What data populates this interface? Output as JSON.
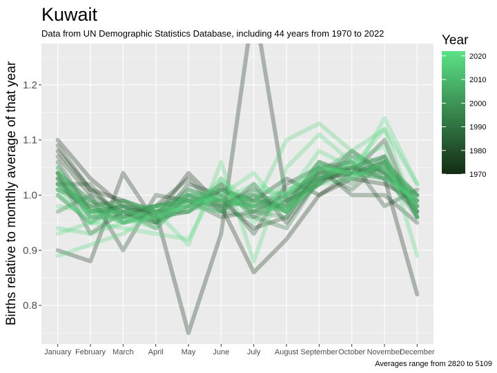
{
  "chart_data": {
    "type": "line",
    "title": "Kuwait",
    "subtitle": "Data from UN Demographic Statistics Database, including 44 years from 1970 to 2022",
    "ylabel": "Births relative to monthly average of that year",
    "xlabel": "",
    "caption": "Averages range from 2820 to 5109",
    "categories": [
      "January",
      "February",
      "March",
      "April",
      "May",
      "June",
      "July",
      "August",
      "September",
      "October",
      "November",
      "December"
    ],
    "ylim": [
      0.73,
      1.275
    ],
    "yticks": [
      0.8,
      0.9,
      1.0,
      1.1,
      1.2
    ],
    "ytick_labels": [
      "0.8",
      "0.9",
      "1.0",
      "1.1",
      "1.2"
    ],
    "grid": true,
    "legend": {
      "title": "Year",
      "position": "right",
      "range": [
        1970,
        2022
      ],
      "ticks": [
        1970,
        1980,
        1990,
        2000,
        2010,
        2020
      ],
      "low_color": "#132B13",
      "high_color": "#5BE286"
    },
    "colors": {
      "panel": "#EBEBEB",
      "grid": "#FFFFFF"
    },
    "series": [
      {
        "year": 1970,
        "values": [
          1.1,
          1.03,
          0.98,
          0.97,
          0.75,
          0.93,
          1.35,
          0.99,
          1.02,
          1.05,
          1.03,
          0.82
        ]
      },
      {
        "year": 1971,
        "values": [
          1.08,
          1.01,
          0.99,
          0.96,
          1.04,
          0.98,
          0.86,
          0.92,
          1.0,
          1.04,
          1.06,
          0.97
        ]
      },
      {
        "year": 1973,
        "values": [
          0.9,
          0.88,
          1.04,
          0.95,
          0.98,
          1.01,
          0.99,
          1.03,
          1.0,
          1.03,
          1.02,
          0.99
        ]
      },
      {
        "year": 1975,
        "values": [
          1.09,
          1.01,
          0.96,
          0.98,
          1.03,
          0.97,
          1.02,
          0.95,
          1.03,
          1.04,
          1.1,
          0.96
        ]
      },
      {
        "year": 1977,
        "values": [
          1.07,
          1.0,
          0.9,
          1.0,
          0.99,
          0.99,
          0.94,
          0.96,
          1.05,
          1.0,
          1.0,
          0.95
        ]
      },
      {
        "year": 1979,
        "values": [
          1.04,
          0.93,
          0.97,
          0.95,
          1.02,
          1.0,
          0.93,
          1.02,
          1.05,
          1.06,
          0.98,
          1.01
        ]
      },
      {
        "year": 1981,
        "values": [
          1.06,
          0.97,
          0.98,
          0.96,
          0.97,
          1.02,
          0.96,
          0.99,
          1.02,
          1.08,
          1.04,
          0.98
        ]
      },
      {
        "year": 1983,
        "values": [
          1.02,
          1.02,
          0.95,
          0.97,
          0.99,
          0.96,
          0.97,
          1.0,
          1.03,
          1.05,
          1.07,
          0.96
        ]
      },
      {
        "year": 1985,
        "values": [
          1.04,
          0.99,
          0.97,
          0.94,
          1.0,
          0.99,
          1.0,
          0.97,
          1.04,
          1.01,
          1.06,
          1.0
        ]
      },
      {
        "year": 1987,
        "values": [
          1.01,
          0.98,
          0.99,
          0.97,
          0.97,
          1.01,
          0.98,
          0.98,
          1.06,
          1.04,
          1.03,
          0.97
        ]
      },
      {
        "year": 1989,
        "values": [
          1.03,
          0.96,
          0.96,
          0.98,
          0.99,
          0.98,
          1.01,
          0.97,
          1.02,
          1.07,
          1.04,
          0.99
        ]
      },
      {
        "year": 1991,
        "values": [
          0.97,
          1.0,
          0.97,
          0.98,
          1.0,
          0.97,
          0.96,
          0.94,
          1.03,
          1.04,
          1.05,
          1.0
        ]
      },
      {
        "year": 1993,
        "values": [
          1.02,
          0.97,
          0.98,
          0.95,
          1.01,
          0.99,
          0.98,
          1.0,
          1.04,
          1.05,
          1.04,
          0.96
        ]
      },
      {
        "year": 1995,
        "values": [
          1.0,
          0.95,
          0.99,
          0.97,
          0.98,
          1.02,
          0.97,
          0.99,
          1.05,
          1.02,
          1.07,
          0.98
        ]
      },
      {
        "year": 1997,
        "values": [
          1.03,
          0.98,
          0.95,
          0.96,
          1.0,
          0.98,
          0.99,
          0.98,
          1.03,
          1.06,
          1.03,
          1.0
        ]
      },
      {
        "year": 1999,
        "values": [
          1.05,
          0.97,
          0.97,
          0.98,
          0.99,
          1.0,
          0.97,
          0.96,
          1.04,
          1.05,
          1.05,
          0.97
        ]
      },
      {
        "year": 2001,
        "values": [
          1.01,
          0.99,
          0.96,
          0.97,
          0.98,
          1.01,
          0.99,
          0.98,
          1.06,
          1.03,
          1.06,
          0.98
        ]
      },
      {
        "year": 2003,
        "values": [
          1.04,
          0.96,
          0.98,
          0.95,
          0.99,
          0.97,
          1.0,
          0.97,
          1.04,
          1.08,
          1.04,
          0.99
        ]
      },
      {
        "year": 2005,
        "values": [
          1.02,
          0.98,
          0.95,
          0.97,
          1.01,
          0.99,
          0.98,
          1.01,
          1.03,
          1.05,
          1.07,
          0.96
        ]
      },
      {
        "year": 2007,
        "values": [
          1.03,
          0.97,
          0.97,
          0.96,
          0.97,
          1.0,
          0.99,
          0.97,
          1.05,
          1.04,
          1.05,
          1.0
        ]
      },
      {
        "year": 2009,
        "values": [
          1.0,
          0.95,
          0.98,
          0.98,
          0.99,
          0.98,
          1.0,
          0.99,
          1.02,
          1.07,
          1.06,
          0.97
        ]
      },
      {
        "year": 2011,
        "values": [
          1.04,
          0.99,
          0.96,
          0.95,
          1.0,
          1.01,
          0.97,
          0.98,
          1.05,
          1.04,
          1.04,
          0.99
        ]
      },
      {
        "year": 2013,
        "values": [
          1.02,
          0.97,
          0.99,
          0.97,
          0.98,
          0.97,
          1.01,
          1.0,
          1.06,
          1.03,
          1.06,
          1.0
        ]
      },
      {
        "year": 2015,
        "values": [
          1.05,
          0.96,
          0.97,
          0.96,
          1.0,
          0.99,
          0.98,
          0.97,
          1.03,
          1.06,
          1.05,
          0.98
        ]
      },
      {
        "year": 2017,
        "values": [
          0.94,
          0.93,
          0.95,
          0.98,
          0.97,
          1.03,
          0.98,
          1.1,
          1.13,
          1.08,
          1.12,
          1.02
        ]
      },
      {
        "year": 2019,
        "values": [
          0.89,
          0.91,
          0.93,
          0.97,
          0.91,
          1.06,
          0.88,
          1.05,
          1.11,
          1.06,
          1.09,
          0.89
        ]
      },
      {
        "year": 2020,
        "values": [
          0.93,
          0.95,
          0.94,
          0.93,
          0.92,
          1.03,
          0.95,
          1.0,
          1.08,
          1.05,
          1.12,
          0.96
        ]
      },
      {
        "year": 2021,
        "values": [
          0.98,
          0.97,
          0.95,
          0.96,
          0.98,
          1.0,
          1.04,
          0.97,
          1.02,
          1.03,
          1.14,
          1.02
        ]
      },
      {
        "year": 2022,
        "values": [
          1.01,
          0.95,
          0.96,
          0.94,
          0.99,
          0.99,
          1.02,
          1.0,
          1.05,
          1.04,
          1.03,
          0.99
        ]
      }
    ]
  }
}
